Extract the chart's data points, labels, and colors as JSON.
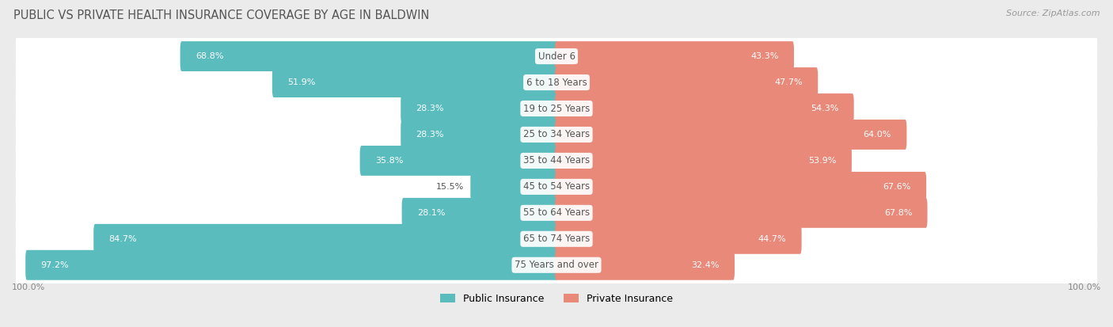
{
  "title": "PUBLIC VS PRIVATE HEALTH INSURANCE COVERAGE BY AGE IN BALDWIN",
  "source": "Source: ZipAtlas.com",
  "categories": [
    "Under 6",
    "6 to 18 Years",
    "19 to 25 Years",
    "25 to 34 Years",
    "35 to 44 Years",
    "45 to 54 Years",
    "55 to 64 Years",
    "65 to 74 Years",
    "75 Years and over"
  ],
  "public_values": [
    68.8,
    51.9,
    28.3,
    28.3,
    35.8,
    15.5,
    28.1,
    84.7,
    97.2
  ],
  "private_values": [
    43.3,
    47.7,
    54.3,
    64.0,
    53.9,
    67.6,
    67.8,
    44.7,
    32.4
  ],
  "public_color": "#5bbcbe",
  "private_color": "#e8897a",
  "background_color": "#ebebeb",
  "row_bg_color": "#ffffff",
  "bar_height": 0.55,
  "max_value": 100.0,
  "legend_public": "Public Insurance",
  "legend_private": "Private Insurance",
  "title_color": "#555555",
  "source_color": "#999999",
  "label_color": "#555555",
  "axis_label_color": "#888888"
}
